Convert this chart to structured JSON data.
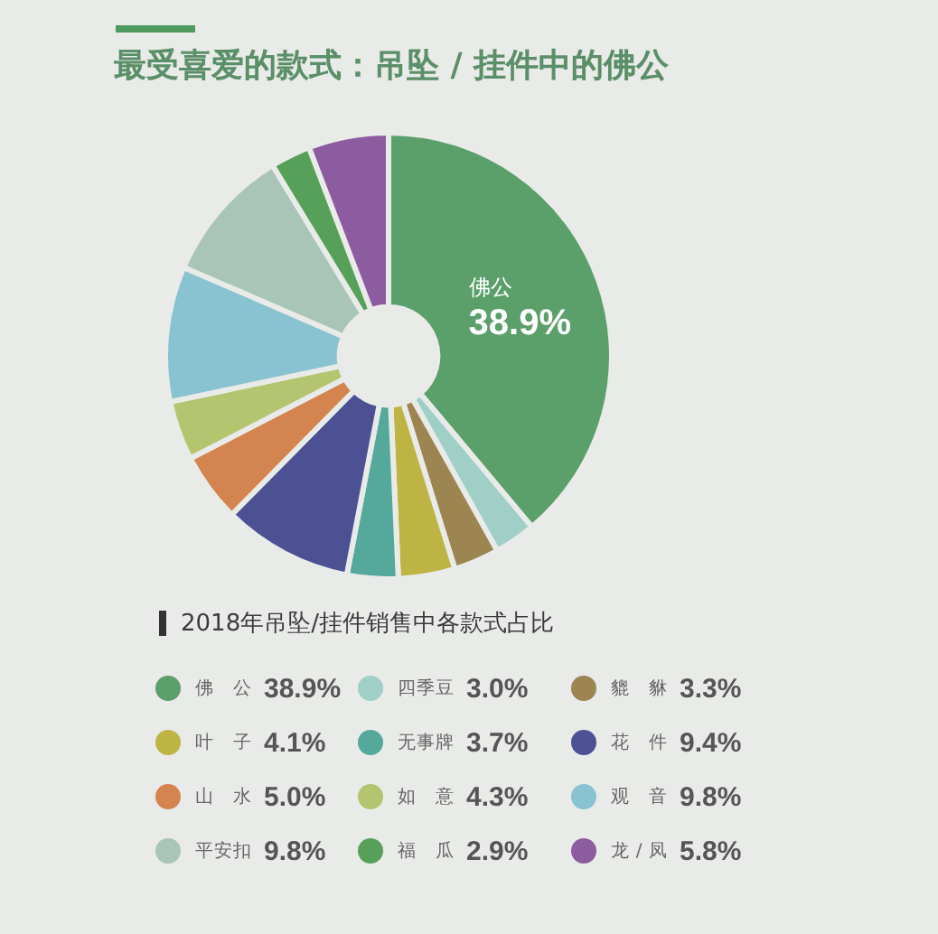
{
  "chart_data": {
    "type": "donut",
    "title": "最受喜爱的款式：吊坠 / 挂件中的佛公",
    "subtitle": "2018年吊坠/挂件销售中各款式占比",
    "categories": [
      "佛公",
      "四季豆",
      "貔貅",
      "叶子",
      "无事牌",
      "花件",
      "山水",
      "如意",
      "观音",
      "平安扣",
      "福瓜",
      "龙/凤"
    ],
    "values": [
      38.9,
      3.0,
      3.3,
      4.1,
      3.7,
      9.4,
      5.0,
      4.3,
      9.8,
      9.8,
      2.9,
      5.8
    ],
    "value_labels": [
      "38.9%",
      "3.0%",
      "3.3%",
      "4.1%",
      "3.7%",
      "9.4%",
      "5.0%",
      "4.3%",
      "9.8%",
      "9.8%",
      "2.9%",
      "5.8%"
    ],
    "colors": [
      "#5ba06b",
      "#9fcfc6",
      "#9c8551",
      "#bdb444",
      "#55a99b",
      "#4c5193",
      "#d4844f",
      "#b5c46f",
      "#89c2d0",
      "#a9c5b8",
      "#57a05a",
      "#8d5ca0"
    ],
    "legend": "bottom"
  }
}
